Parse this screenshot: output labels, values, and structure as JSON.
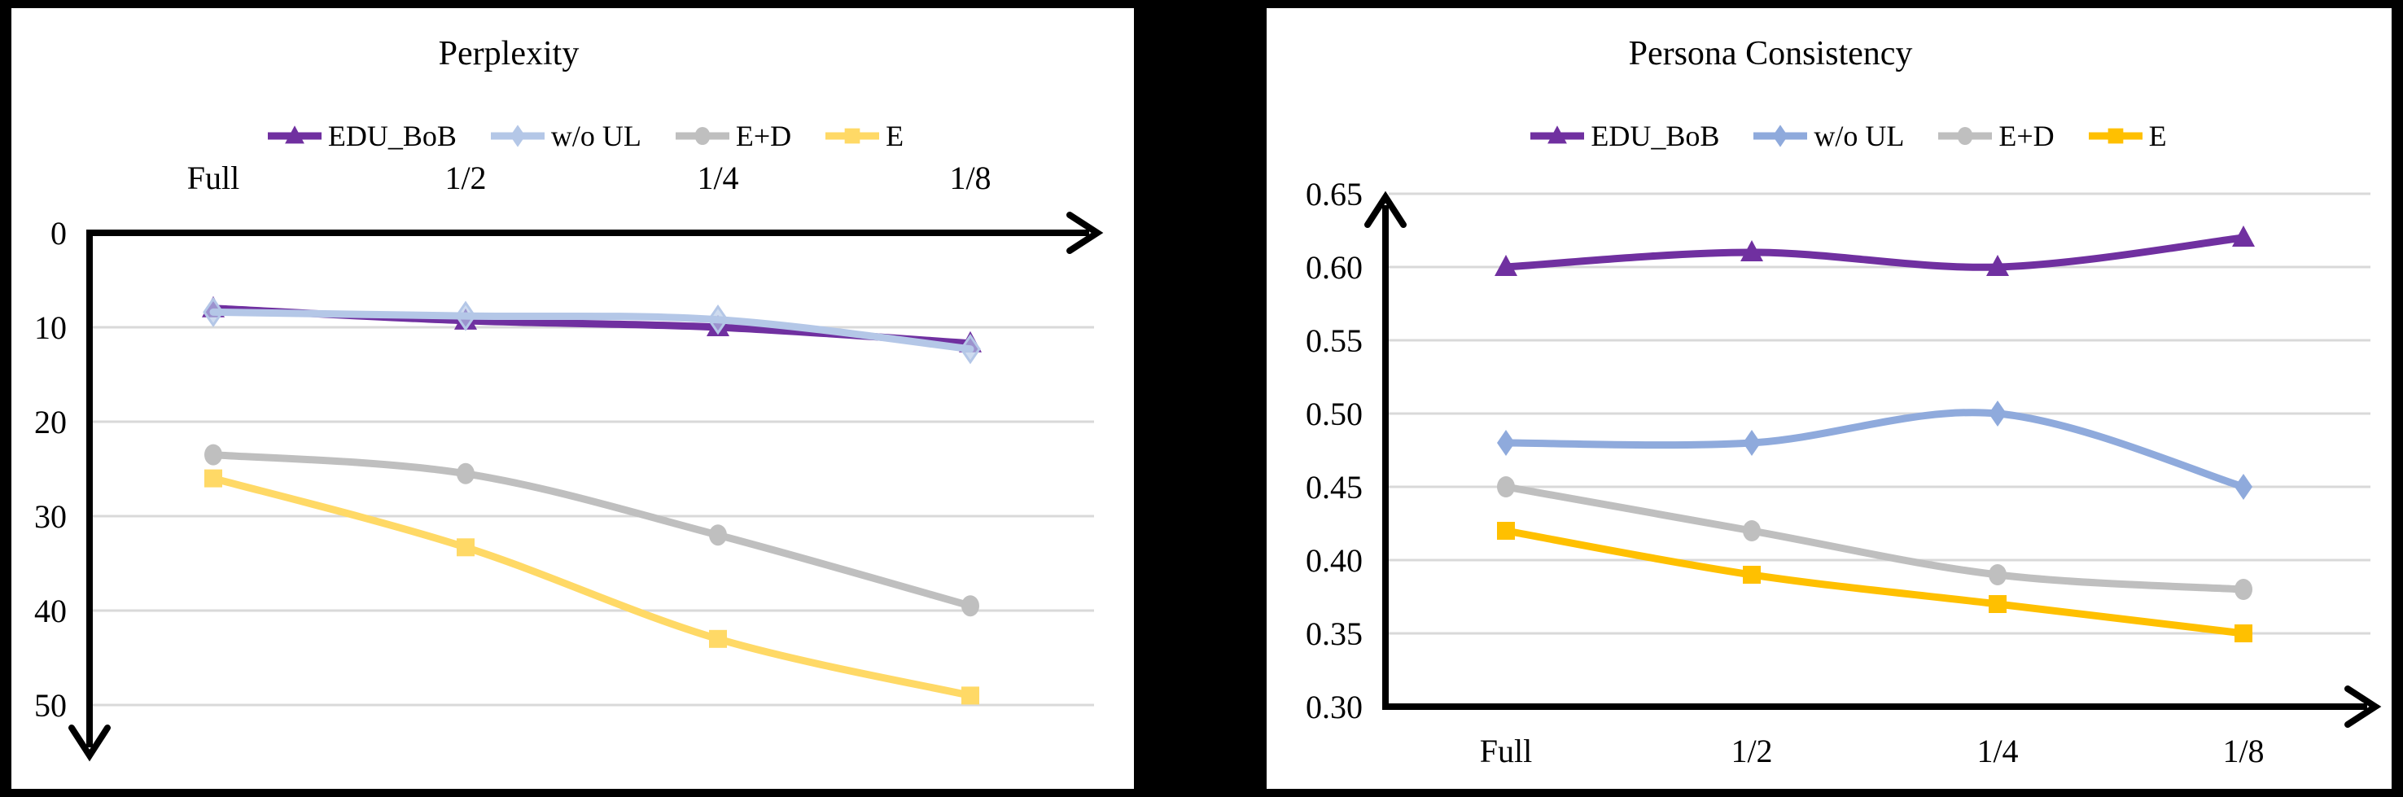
{
  "page": {
    "background": "#000000",
    "panel_background": "#ffffff"
  },
  "styles": {
    "gridline_color": "#D9D9D9",
    "axis_color": "#000000",
    "text_color": "#000000"
  },
  "chart_data": [
    {
      "id": "perplexity",
      "type": "line",
      "title": "Perplexity",
      "categories": [
        "Full",
        "1/2",
        "1/4",
        "1/8"
      ],
      "x_axis_position": "top",
      "legend_position": "top",
      "grid": true,
      "y_axis": {
        "direction": "inverted",
        "min": 0,
        "max": 50,
        "tick_step": 10,
        "tick_labels": [
          "0",
          "10",
          "20",
          "30",
          "40",
          "50"
        ]
      },
      "series": [
        {
          "name": "EDU_BoB",
          "marker": "triangle",
          "color": "#7030A0",
          "values": [
            8.0,
            9.3,
            10.0,
            11.7
          ]
        },
        {
          "name": "w/o UL",
          "marker": "diamond",
          "color": "#B4C7E7",
          "values": [
            8.4,
            8.8,
            9.2,
            12.3
          ]
        },
        {
          "name": "E+D",
          "marker": "circle",
          "color": "#BFBFBF",
          "values": [
            23.5,
            25.5,
            32.0,
            39.5
          ]
        },
        {
          "name": "E",
          "marker": "square",
          "color": "#FFD966",
          "values": [
            26.0,
            33.3,
            43.0,
            49.0
          ]
        }
      ]
    },
    {
      "id": "persona-consistency",
      "type": "line",
      "title": "Persona Consistency",
      "categories": [
        "Full",
        "1/2",
        "1/4",
        "1/8"
      ],
      "x_axis_position": "bottom",
      "legend_position": "top",
      "grid": true,
      "y_axis": {
        "direction": "normal",
        "min": 0.3,
        "max": 0.65,
        "tick_step": 0.05,
        "tick_labels": [
          "0.30",
          "0.35",
          "0.40",
          "0.45",
          "0.50",
          "0.55",
          "0.60",
          "0.65"
        ]
      },
      "series": [
        {
          "name": "EDU_BoB",
          "marker": "triangle",
          "color": "#7030A0",
          "values": [
            0.6,
            0.61,
            0.6,
            0.62
          ]
        },
        {
          "name": "w/o UL",
          "marker": "diamond",
          "color": "#8FAADC",
          "values": [
            0.48,
            0.48,
            0.5,
            0.45
          ]
        },
        {
          "name": "E+D",
          "marker": "circle",
          "color": "#BFBFBF",
          "values": [
            0.45,
            0.42,
            0.39,
            0.38
          ]
        },
        {
          "name": "E",
          "marker": "square",
          "color": "#FFC000",
          "values": [
            0.42,
            0.39,
            0.37,
            0.35
          ]
        }
      ]
    }
  ]
}
